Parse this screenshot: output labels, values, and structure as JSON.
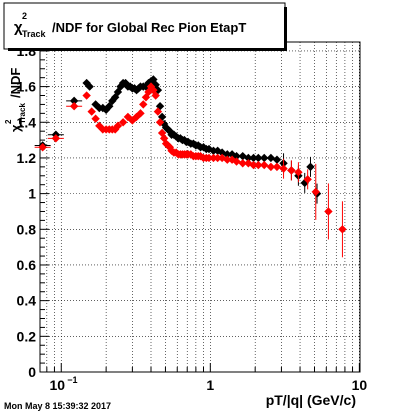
{
  "chart_data": {
    "type": "scatter",
    "title": "/NDF for Global Rec Pion EtapT",
    "title_symbol": "χ",
    "title_sup": "2",
    "title_sub": "Track",
    "ylabel_symbol": "χ",
    "ylabel_sup": "2",
    "ylabel_sub": "Track",
    "ylabel_rest": "/NDF",
    "xlabel": "pT/|q| (GeV/c)",
    "x_scale": "log",
    "xlim": [
      0.072,
      10.1
    ],
    "ylim": [
      0,
      1.85
    ],
    "grid": true,
    "x_tick_labels": [
      {
        "value": 0.1,
        "base": "10",
        "exp": "−1"
      },
      {
        "value": 1,
        "text": "1"
      },
      {
        "value": 10,
        "text": "10"
      }
    ],
    "y_ticks": [
      0,
      0.2,
      0.4,
      0.6,
      0.8,
      1,
      1.2,
      1.4,
      1.6,
      1.8
    ],
    "y_tick_labels": [
      "0",
      "0.2",
      "0.4",
      "0.6",
      "0.8",
      "1",
      "1.2",
      "1.4",
      "1.6",
      "1.8"
    ],
    "series": [
      {
        "color": "#000000",
        "points": [
          [
            0.075,
            1.27
          ],
          [
            0.092,
            1.33
          ],
          [
            0.122,
            1.52
          ],
          [
            0.148,
            1.62
          ],
          [
            0.155,
            1.6
          ],
          [
            0.17,
            1.5
          ],
          [
            0.18,
            1.48
          ],
          [
            0.19,
            1.48
          ],
          [
            0.2,
            1.47
          ],
          [
            0.21,
            1.49
          ],
          [
            0.22,
            1.52
          ],
          [
            0.23,
            1.54
          ],
          [
            0.24,
            1.57
          ],
          [
            0.25,
            1.6
          ],
          [
            0.26,
            1.62
          ],
          [
            0.27,
            1.62
          ],
          [
            0.28,
            1.6
          ],
          [
            0.29,
            1.6
          ],
          [
            0.3,
            1.59
          ],
          [
            0.31,
            1.59
          ],
          [
            0.32,
            1.58
          ],
          [
            0.33,
            1.59
          ],
          [
            0.34,
            1.6
          ],
          [
            0.355,
            1.6
          ],
          [
            0.37,
            1.6
          ],
          [
            0.385,
            1.62
          ],
          [
            0.4,
            1.63
          ],
          [
            0.415,
            1.64
          ],
          [
            0.43,
            1.61
          ],
          [
            0.445,
            1.58
          ],
          [
            0.46,
            1.49
          ],
          [
            0.475,
            1.43
          ],
          [
            0.49,
            1.39
          ],
          [
            0.505,
            1.37
          ],
          [
            0.52,
            1.36
          ],
          [
            0.535,
            1.35
          ],
          [
            0.55,
            1.33
          ],
          [
            0.57,
            1.33
          ],
          [
            0.59,
            1.32
          ],
          [
            0.61,
            1.31
          ],
          [
            0.63,
            1.31
          ],
          [
            0.65,
            1.3
          ],
          [
            0.67,
            1.3
          ],
          [
            0.69,
            1.29
          ],
          [
            0.71,
            1.29
          ],
          [
            0.74,
            1.28
          ],
          [
            0.77,
            1.28
          ],
          [
            0.8,
            1.27
          ],
          [
            0.83,
            1.27
          ],
          [
            0.86,
            1.26
          ],
          [
            0.9,
            1.26
          ],
          [
            0.94,
            1.25
          ],
          [
            0.98,
            1.25
          ],
          [
            1.05,
            1.24
          ],
          [
            1.12,
            1.24
          ],
          [
            1.2,
            1.23
          ],
          [
            1.3,
            1.22
          ],
          [
            1.4,
            1.22
          ],
          [
            1.5,
            1.21
          ],
          [
            1.65,
            1.21
          ],
          [
            1.8,
            1.2
          ],
          [
            1.95,
            1.2
          ],
          [
            2.1,
            1.2
          ],
          [
            2.3,
            1.2
          ],
          [
            2.55,
            1.2
          ],
          [
            2.8,
            1.19
          ],
          [
            3.1,
            1.17
          ],
          [
            3.5,
            1.13
          ],
          [
            3.9,
            1.1
          ],
          [
            4.3,
            1.06
          ],
          [
            4.7,
            1.15
          ],
          [
            5.2,
            1.0
          ]
        ]
      },
      {
        "color": "#ff0000",
        "points": [
          [
            0.075,
            1.26
          ],
          [
            0.092,
            1.31
          ],
          [
            0.122,
            1.49
          ],
          [
            0.148,
            1.55
          ],
          [
            0.16,
            1.46
          ],
          [
            0.17,
            1.42
          ],
          [
            0.18,
            1.38
          ],
          [
            0.19,
            1.36
          ],
          [
            0.2,
            1.36
          ],
          [
            0.21,
            1.36
          ],
          [
            0.22,
            1.36
          ],
          [
            0.23,
            1.36
          ],
          [
            0.24,
            1.38
          ],
          [
            0.26,
            1.4
          ],
          [
            0.28,
            1.43
          ],
          [
            0.3,
            1.41
          ],
          [
            0.32,
            1.43
          ],
          [
            0.34,
            1.45
          ],
          [
            0.355,
            1.5
          ],
          [
            0.37,
            1.54
          ],
          [
            0.385,
            1.57
          ],
          [
            0.4,
            1.6
          ],
          [
            0.415,
            1.58
          ],
          [
            0.43,
            1.55
          ],
          [
            0.445,
            1.46
          ],
          [
            0.46,
            1.4
          ],
          [
            0.475,
            1.34
          ],
          [
            0.49,
            1.31
          ],
          [
            0.505,
            1.28
          ],
          [
            0.52,
            1.27
          ],
          [
            0.535,
            1.26
          ],
          [
            0.55,
            1.24
          ],
          [
            0.57,
            1.23
          ],
          [
            0.59,
            1.23
          ],
          [
            0.61,
            1.22
          ],
          [
            0.63,
            1.22
          ],
          [
            0.65,
            1.22
          ],
          [
            0.67,
            1.22
          ],
          [
            0.69,
            1.22
          ],
          [
            0.71,
            1.22
          ],
          [
            0.74,
            1.22
          ],
          [
            0.77,
            1.21
          ],
          [
            0.8,
            1.21
          ],
          [
            0.83,
            1.21
          ],
          [
            0.86,
            1.21
          ],
          [
            0.9,
            1.2
          ],
          [
            0.94,
            1.2
          ],
          [
            0.98,
            1.2
          ],
          [
            1.05,
            1.2
          ],
          [
            1.12,
            1.2
          ],
          [
            1.2,
            1.2
          ],
          [
            1.3,
            1.19
          ],
          [
            1.4,
            1.19
          ],
          [
            1.5,
            1.18
          ],
          [
            1.65,
            1.17
          ],
          [
            1.8,
            1.17
          ],
          [
            1.95,
            1.16
          ],
          [
            2.1,
            1.16
          ],
          [
            2.3,
            1.16
          ],
          [
            2.55,
            1.15
          ],
          [
            2.8,
            1.15
          ],
          [
            3.1,
            1.14
          ],
          [
            3.5,
            1.13
          ],
          [
            3.9,
            1.12
          ],
          [
            4.5,
            1.08
          ],
          [
            5.1,
            1.01
          ],
          [
            6.2,
            0.9
          ],
          [
            7.7,
            0.8
          ]
        ]
      }
    ]
  },
  "footer": {
    "timestamp": "Mon May  8 15:39:32 2017"
  }
}
